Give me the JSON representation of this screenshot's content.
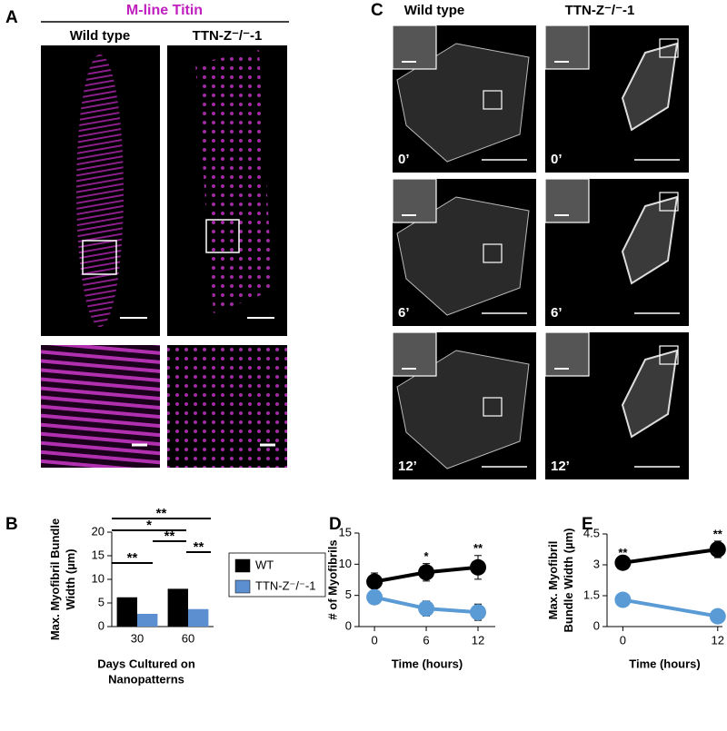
{
  "panel_a": {
    "label": "A",
    "title": "M-line Titin",
    "columns": [
      "Wild type",
      "TTN-Z⁻/⁻-1"
    ]
  },
  "panel_c": {
    "label": "C",
    "columns": [
      "Wild type",
      "TTN-Z⁻/⁻-1"
    ],
    "time_labels": [
      "0’",
      "6’",
      "12’"
    ]
  },
  "chart_data": [
    {
      "type": "bar",
      "panel_label": "B",
      "y_label": [
        "Max. Myofibril Bundle",
        "Width (µm)"
      ],
      "x_label": [
        "Days Cultured on",
        "Nanopatterns"
      ],
      "categories": [
        "30",
        "60"
      ],
      "series": [
        {
          "name": "WT",
          "color": "#000000",
          "values": [
            6.2,
            8.0
          ]
        },
        {
          "name": "TTN-Z⁻/⁻-1",
          "color": "#5b8fcf",
          "values": [
            2.7,
            3.7
          ]
        }
      ],
      "ylim": [
        0,
        20
      ],
      "yticks": [
        0,
        5,
        10,
        15,
        20
      ],
      "annotations": [
        "**",
        "*",
        "**",
        "**",
        "**"
      ]
    },
    {
      "type": "line",
      "panel_label": "D",
      "y_label": [
        "# of Myofibrils"
      ],
      "x_label": [
        "Time (hours)"
      ],
      "x": [
        0,
        6,
        12
      ],
      "series": [
        {
          "name": "WT",
          "color": "#000000",
          "values": [
            7.2,
            8.7,
            9.5
          ],
          "errors": [
            1.4,
            1.4,
            1.9
          ]
        },
        {
          "name": "TTN-Z⁻/⁻-1",
          "color": "#5b9bd5",
          "values": [
            4.7,
            2.9,
            2.3
          ],
          "errors": [
            1.1,
            1.2,
            1.3
          ]
        }
      ],
      "xlim": [
        -1.8,
        14
      ],
      "xticks": [
        0,
        6,
        12
      ],
      "ylim": [
        0,
        15
      ],
      "yticks": [
        0,
        5,
        10,
        15
      ],
      "annotations": [
        {
          "x": 6,
          "text": "*"
        },
        {
          "x": 12,
          "text": "**"
        }
      ]
    },
    {
      "type": "line",
      "panel_label": "E",
      "y_label": [
        "Max. Myofibril",
        "Bundle Width (µm)"
      ],
      "x_label": [
        "Time (hours)"
      ],
      "x": [
        0,
        12
      ],
      "series": [
        {
          "name": "WT",
          "color": "#000000",
          "values": [
            3.1,
            3.75
          ],
          "errors": [
            0.15,
            0.4
          ]
        },
        {
          "name": "TTN-Z⁻/⁻-1",
          "color": "#5b9bd5",
          "values": [
            1.3,
            0.5
          ],
          "errors": [
            0.1,
            0.1
          ]
        }
      ],
      "xlim": [
        -2,
        12.6
      ],
      "xticks": [
        0,
        12
      ],
      "ylim": [
        0,
        4.5
      ],
      "yticks": [
        0,
        1.5,
        3,
        4.5
      ],
      "annotations": [
        {
          "x": 0,
          "text": "**"
        },
        {
          "x": 12,
          "text": "**"
        }
      ]
    }
  ]
}
